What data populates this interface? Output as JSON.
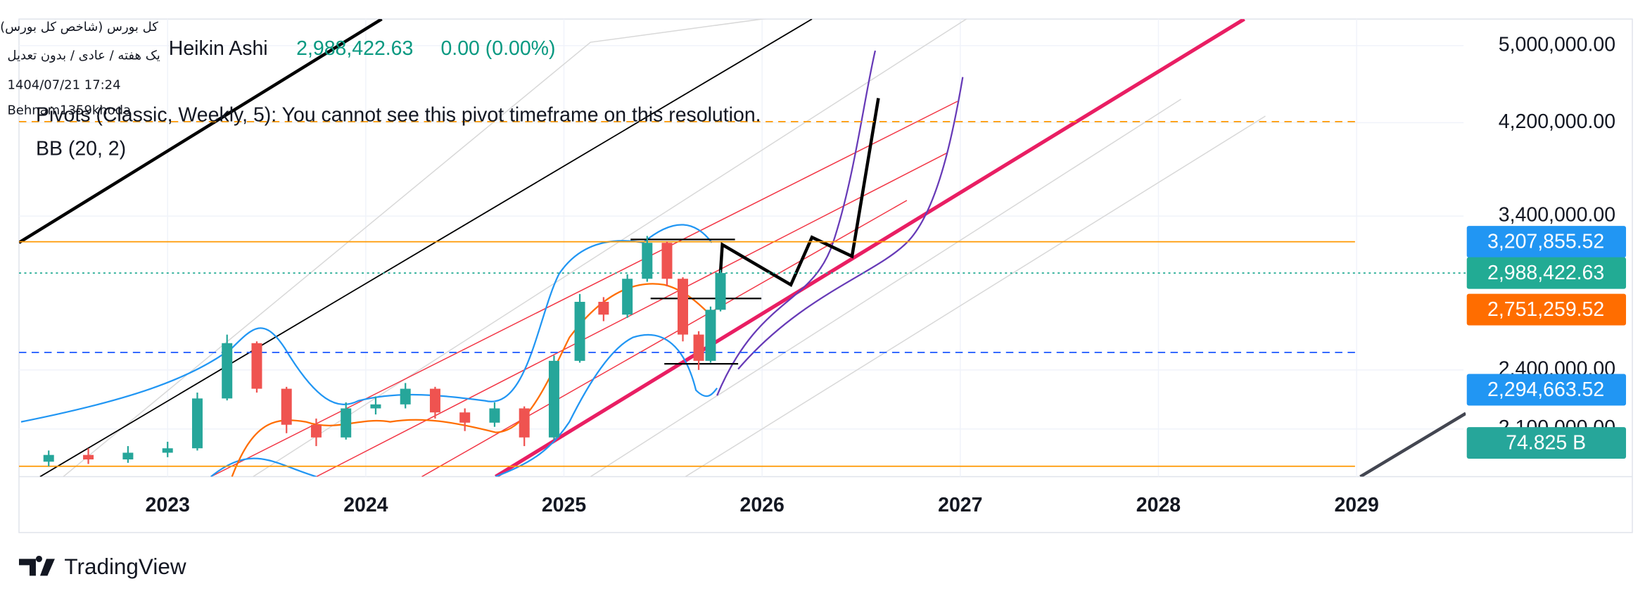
{
  "overlay": {
    "symbol": "کل بورس (شاخص کل بورس)",
    "settings": "یک هفته / عادی / بدون تعدیل",
    "timestamp": "1404/07/21 17:24",
    "author": "Behnam1359khoda"
  },
  "legend": {
    "style": "Heikin Ashi",
    "price": "2,988,422.63",
    "change": "0.00 (0.00%)",
    "pivots": "Pivots (Classic, Weekly, 5): You cannot see this pivot timeframe on this resolution.",
    "bb": "BB (20, 2)"
  },
  "footer": {
    "brand": "TradingView"
  },
  "chart_data": {
    "type": "candlestick",
    "log_scale": true,
    "grid": true,
    "up_color": "#26a69a",
    "down_color": "#ef5350",
    "x": [
      2022.4,
      2022.6,
      2022.8,
      2023.0,
      2023.15,
      2023.3,
      2023.45,
      2023.6,
      2023.75,
      2023.9,
      2024.05,
      2024.2,
      2024.35,
      2024.5,
      2024.65,
      2024.8,
      2024.95,
      2025.08,
      2025.2,
      2025.32,
      2025.42,
      2025.52,
      2025.6,
      2025.68,
      2025.74,
      2025.79
    ],
    "open": [
      1950000,
      1980000,
      1960000,
      1990000,
      2010000,
      2250000,
      2550000,
      2300000,
      2120000,
      2060000,
      2200000,
      2220000,
      2300000,
      2180000,
      2130000,
      2200000,
      2060000,
      2450000,
      2800000,
      2720000,
      2950000,
      3200000,
      2950000,
      2600000,
      2450000,
      2750000
    ],
    "high": [
      2000000,
      2010000,
      2020000,
      2040000,
      2280000,
      2600000,
      2560000,
      2310000,
      2150000,
      2230000,
      2260000,
      2330000,
      2310000,
      2200000,
      2230000,
      2210000,
      2480000,
      2850000,
      2830000,
      2980000,
      3250000,
      3210000,
      2960000,
      2620000,
      2770000,
      3010000
    ],
    "low": [
      1930000,
      1940000,
      1945000,
      1970000,
      2000000,
      2240000,
      2280000,
      2080000,
      2020000,
      2050000,
      2170000,
      2200000,
      2150000,
      2090000,
      2110000,
      2020000,
      2050000,
      2440000,
      2680000,
      2700000,
      2930000,
      2900000,
      2560000,
      2400000,
      2440000,
      2740000
    ],
    "close": [
      1980000,
      1960000,
      1990000,
      2010000,
      2250000,
      2550000,
      2300000,
      2120000,
      2060000,
      2200000,
      2220000,
      2300000,
      2180000,
      2130000,
      2200000,
      2060000,
      2450000,
      2800000,
      2720000,
      2950000,
      3200000,
      2950000,
      2600000,
      2450000,
      2750000,
      2988422.63
    ],
    "xlim": [
      2022.25,
      2029.54
    ],
    "xticks": [
      2023,
      2024,
      2025,
      2026,
      2027,
      2028,
      2029
    ],
    "ylim": [
      1885000,
      5310000
    ],
    "yticks": [
      {
        "value": 2100000,
        "label": "2,100,000.00"
      },
      {
        "value": 2400000,
        "label": "2,400,000.00"
      },
      {
        "value": 3400000,
        "label": "3,400,000.00"
      },
      {
        "value": 4200000,
        "label": "4,200,000.00"
      },
      {
        "value": 5000000,
        "label": "5,000,000.00"
      }
    ],
    "price_labels": [
      {
        "value": 3207855.52,
        "label": "3,207,855.52",
        "color": "#2196f3"
      },
      {
        "value": 2988422.63,
        "label": "2,988,422.63",
        "color": "#22ab94"
      },
      {
        "value": 2751259.52,
        "label": "2,751,259.52",
        "color": "#ff6d00"
      },
      {
        "value": 2294663.52,
        "label": "2,294,663.52",
        "color": "#2196f3"
      }
    ],
    "volume_label": {
      "value": 74825000000,
      "label": "74.825 B",
      "color": "#26a69a"
    },
    "levels": [
      {
        "value": 3207855.52,
        "color": "#ff9800",
        "style": "solid"
      },
      {
        "value": 2988422.63,
        "color": "#22ab94",
        "style": "dotted"
      },
      {
        "value": 4210000,
        "color": "#ff9800",
        "style": "dashed"
      },
      {
        "value": 2497000,
        "color": "#2962ff",
        "style": "dashed"
      },
      {
        "value": 1930000,
        "color": "#ff9800",
        "style": "solid"
      }
    ]
  }
}
